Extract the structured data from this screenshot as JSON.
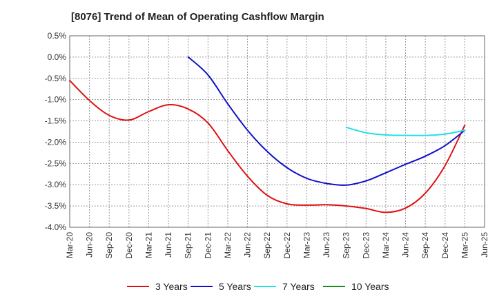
{
  "chart_data": {
    "type": "line",
    "title": "[8076]  Trend of Mean of Operating Cashflow Margin",
    "xlabel": "",
    "ylabel": "",
    "x_ticks": [
      "Mar-20",
      "Jun-20",
      "Sep-20",
      "Dec-20",
      "Mar-21",
      "Jun-21",
      "Sep-21",
      "Dec-21",
      "Mar-22",
      "Jun-22",
      "Sep-22",
      "Dec-22",
      "Mar-23",
      "Jun-23",
      "Sep-23",
      "Dec-23",
      "Mar-24",
      "Jun-24",
      "Sep-24",
      "Dec-24",
      "Mar-25",
      "Jun-25"
    ],
    "y_ticks": [
      "0.5%",
      "0.0%",
      "-0.5%",
      "-1.0%",
      "-1.5%",
      "-2.0%",
      "-2.5%",
      "-3.0%",
      "-3.5%",
      "-4.0%"
    ],
    "ylim": [
      -4.0,
      0.5
    ],
    "grid": true,
    "legend_position": "bottom",
    "series": [
      {
        "name": "3 Years",
        "color": "#e01010",
        "x": [
          "Mar-20",
          "Jun-20",
          "Sep-20",
          "Dec-20",
          "Mar-21",
          "Jun-21",
          "Sep-21",
          "Dec-21",
          "Mar-22",
          "Jun-22",
          "Sep-22",
          "Dec-22",
          "Mar-23",
          "Jun-23",
          "Sep-23",
          "Dec-23",
          "Mar-24",
          "Jun-24",
          "Sep-24",
          "Dec-24",
          "Mar-25"
        ],
        "values": [
          -0.55,
          -1.02,
          -1.37,
          -1.48,
          -1.28,
          -1.12,
          -1.22,
          -1.55,
          -2.2,
          -2.8,
          -3.25,
          -3.45,
          -3.48,
          -3.47,
          -3.5,
          -3.56,
          -3.65,
          -3.55,
          -3.2,
          -2.55,
          -1.6
        ]
      },
      {
        "name": "5 Years",
        "color": "#1010c8",
        "x": [
          "Sep-21",
          "Dec-21",
          "Mar-22",
          "Jun-22",
          "Sep-22",
          "Dec-22",
          "Mar-23",
          "Jun-23",
          "Sep-23",
          "Dec-23",
          "Mar-24",
          "Jun-24",
          "Sep-24",
          "Dec-24",
          "Mar-25"
        ],
        "values": [
          0.0,
          -0.42,
          -1.1,
          -1.72,
          -2.22,
          -2.6,
          -2.85,
          -2.97,
          -3.01,
          -2.91,
          -2.72,
          -2.52,
          -2.33,
          -2.08,
          -1.72
        ]
      },
      {
        "name": "7 Years",
        "color": "#20e0e8",
        "x": [
          "Sep-23",
          "Dec-23",
          "Mar-24",
          "Jun-24",
          "Sep-24",
          "Dec-24",
          "Mar-25"
        ],
        "values": [
          -1.65,
          -1.78,
          -1.83,
          -1.84,
          -1.84,
          -1.81,
          -1.72
        ]
      },
      {
        "name": "10 Years",
        "color": "#1a8a1a",
        "x": [],
        "values": []
      }
    ]
  }
}
